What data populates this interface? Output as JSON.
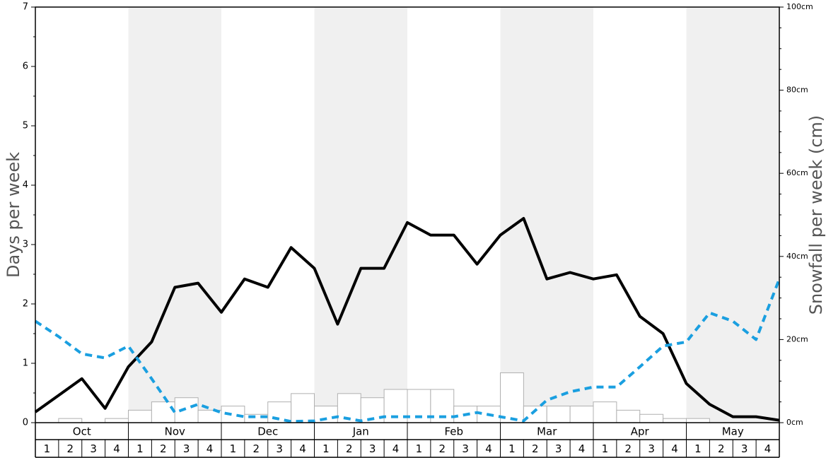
{
  "chart_data": {
    "type": "bar",
    "ylabel": "Days per week",
    "y2label": "Snowfall per week (cm)",
    "ylim": [
      0,
      7
    ],
    "y2lim": [
      0,
      100
    ],
    "yticks": [
      "0",
      "1",
      "2",
      "3",
      "4",
      "5",
      "6",
      "7"
    ],
    "y2ticks": [
      "0cm",
      "20cm",
      "40cm",
      "60cm",
      "80cm",
      "100cm"
    ],
    "months": [
      "Oct",
      "Nov",
      "Dec",
      "Jan",
      "Feb",
      "Mar",
      "Apr",
      "May"
    ],
    "weeks": [
      "1",
      "2",
      "3",
      "4"
    ],
    "shaded_months": [
      "Nov",
      "Jan",
      "Mar",
      "May"
    ],
    "series": [
      {
        "kind": "bars",
        "axis": "right",
        "values": [
          0,
          1,
          0,
          1,
          3,
          5,
          6,
          3,
          4,
          2,
          5,
          7,
          4,
          7,
          6,
          8,
          8,
          8,
          4,
          4,
          12,
          4,
          4,
          4,
          5,
          3,
          2,
          1,
          1,
          0,
          0,
          0
        ]
      },
      {
        "kind": "line",
        "axis": "left",
        "style": "solid",
        "values": [
          0.18,
          0.46,
          0.74,
          0.24,
          0.94,
          1.36,
          2.28,
          2.35,
          1.86,
          2.42,
          2.28,
          2.95,
          2.6,
          1.66,
          2.6,
          2.6,
          3.37,
          3.16,
          3.16,
          2.67,
          3.16,
          3.44,
          2.42,
          2.53,
          2.42,
          2.49,
          1.79,
          1.5,
          0.66,
          0.31,
          0.1,
          0.1,
          0.04
        ]
      },
      {
        "kind": "line",
        "axis": "left",
        "style": "dashed",
        "values": [
          1.71,
          1.45,
          1.16,
          1.09,
          1.29,
          0.74,
          0.17,
          0.31,
          0.17,
          0.1,
          0.1,
          0.02,
          0.03,
          0.1,
          0.03,
          0.1,
          0.1,
          0.1,
          0.1,
          0.17,
          0.1,
          0.03,
          0.38,
          0.52,
          0.6,
          0.6,
          0.94,
          1.29,
          1.36,
          1.85,
          1.71,
          1.4,
          2.42
        ]
      }
    ]
  },
  "colors": {
    "shade": "#f0f0f0",
    "bar_stroke": "#b0b0b0",
    "solid_line": "#000000",
    "dashed_line": "#1a9fe0",
    "axis_label": "#555555"
  }
}
